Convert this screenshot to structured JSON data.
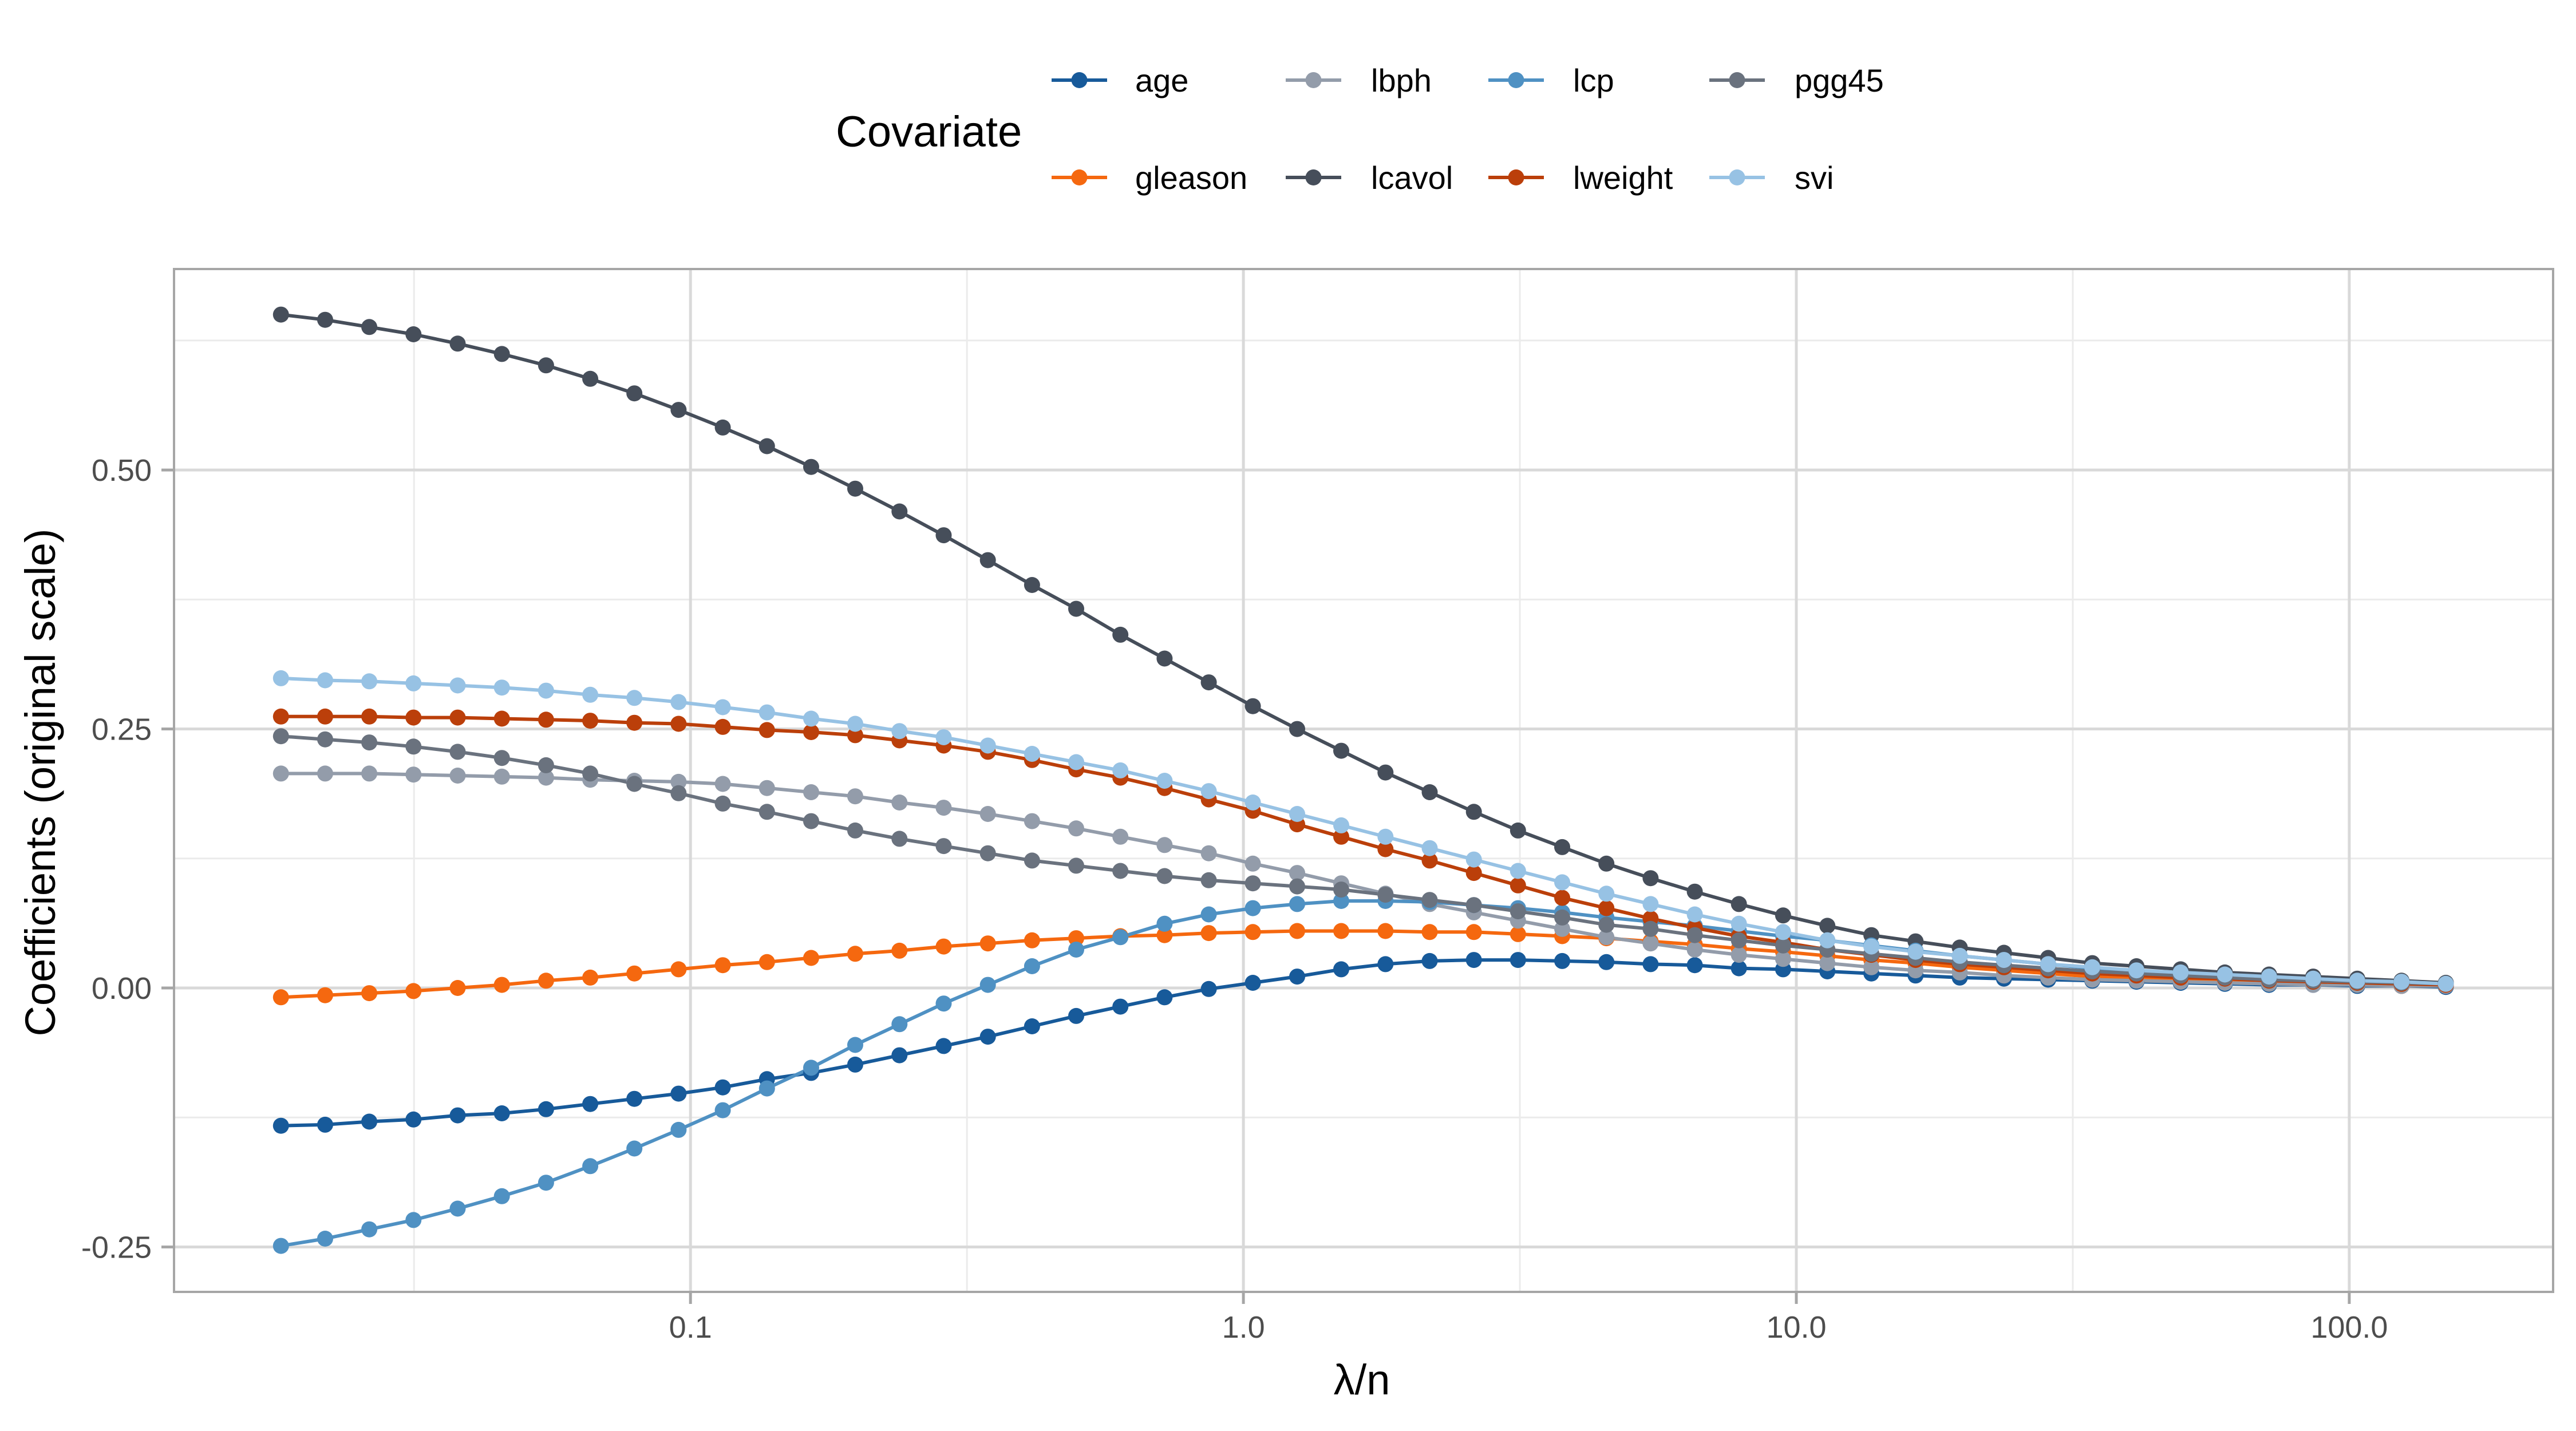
{
  "chart_data": {
    "type": "line",
    "title": "",
    "xlabel": "λ/n",
    "ylabel": "Coefficients (original scale)",
    "x_scale": "log10",
    "xlim": [
      0.01164,
      233.7
    ],
    "ylim": [
      -0.2934,
      0.694
    ],
    "grid": true,
    "legend": {
      "title": "Covariate",
      "position": "top",
      "rows": 2
    },
    "x_ticks": [
      {
        "value": 0.1,
        "label": "0.1"
      },
      {
        "value": 1.0,
        "label": "1.0"
      },
      {
        "value": 10.0,
        "label": "10.0"
      },
      {
        "value": 100.0,
        "label": "100.0"
      }
    ],
    "y_ticks": [
      {
        "value": 0.5,
        "label": "0.50"
      },
      {
        "value": 0.25,
        "label": "0.25"
      },
      {
        "value": 0.0,
        "label": "0.00"
      },
      {
        "value": -0.25,
        "label": "-0.25"
      }
    ],
    "x": [
      0.01817,
      0.02184,
      0.02625,
      0.03155,
      0.03793,
      0.04559,
      0.0548,
      0.06587,
      0.07917,
      0.09517,
      0.1144,
      0.1375,
      0.1653,
      0.1986,
      0.2388,
      0.287,
      0.345,
      0.4147,
      0.4984,
      0.5991,
      0.7201,
      0.8656,
      1.04,
      1.251,
      1.503,
      1.807,
      2.172,
      2.611,
      3.138,
      3.772,
      4.534,
      5.45,
      6.551,
      7.874,
      9.463,
      11.38,
      13.67,
      16.43,
      19.75,
      23.74,
      28.54,
      34.3,
      41.23,
      49.56,
      59.57,
      71.6,
      86.06,
      103.4,
      124.3,
      149.5
    ],
    "series": [
      {
        "name": "age",
        "color": "#175A9A",
        "values": [
          -0.133,
          -0.132,
          -0.129,
          -0.127,
          -0.123,
          -0.121,
          -0.117,
          -0.112,
          -0.107,
          -0.102,
          -0.096,
          -0.088,
          -0.082,
          -0.074,
          -0.065,
          -0.056,
          -0.047,
          -0.037,
          -0.027,
          -0.018,
          -0.009,
          -0.001,
          0.005,
          0.011,
          0.018,
          0.023,
          0.026,
          0.027,
          0.027,
          0.026,
          0.025,
          0.023,
          0.022,
          0.019,
          0.018,
          0.016,
          0.014,
          0.012,
          0.01,
          0.009,
          0.008,
          0.007,
          0.006,
          0.005,
          0.004,
          0.003,
          0.003,
          0.002,
          0.002,
          0.001
        ]
      },
      {
        "name": "gleason",
        "color": "#F5680F",
        "values": [
          -0.009,
          -0.007,
          -0.005,
          -0.003,
          0.0,
          0.003,
          0.007,
          0.01,
          0.014,
          0.018,
          0.022,
          0.025,
          0.029,
          0.033,
          0.036,
          0.04,
          0.043,
          0.046,
          0.048,
          0.05,
          0.051,
          0.053,
          0.054,
          0.055,
          0.055,
          0.055,
          0.054,
          0.054,
          0.052,
          0.05,
          0.048,
          0.045,
          0.042,
          0.038,
          0.035,
          0.031,
          0.027,
          0.024,
          0.02,
          0.017,
          0.014,
          0.011,
          0.009,
          0.007,
          0.006,
          0.005,
          0.004,
          0.003,
          0.002,
          0.002
        ]
      },
      {
        "name": "lbph",
        "color": "#939CAA",
        "values": [
          0.207,
          0.207,
          0.207,
          0.206,
          0.205,
          0.204,
          0.203,
          0.201,
          0.2,
          0.199,
          0.197,
          0.193,
          0.189,
          0.185,
          0.179,
          0.174,
          0.168,
          0.161,
          0.154,
          0.146,
          0.138,
          0.13,
          0.12,
          0.111,
          0.101,
          0.091,
          0.081,
          0.073,
          0.065,
          0.057,
          0.049,
          0.043,
          0.037,
          0.032,
          0.028,
          0.024,
          0.02,
          0.017,
          0.015,
          0.012,
          0.01,
          0.008,
          0.007,
          0.006,
          0.005,
          0.004,
          0.003,
          0.003,
          0.002,
          0.002
        ]
      },
      {
        "name": "lcavol",
        "color": "#464E5A",
        "values": [
          0.65,
          0.645,
          0.638,
          0.631,
          0.622,
          0.612,
          0.601,
          0.588,
          0.574,
          0.558,
          0.541,
          0.523,
          0.503,
          0.482,
          0.46,
          0.437,
          0.413,
          0.389,
          0.366,
          0.341,
          0.318,
          0.295,
          0.272,
          0.25,
          0.229,
          0.208,
          0.189,
          0.17,
          0.152,
          0.136,
          0.12,
          0.106,
          0.093,
          0.081,
          0.07,
          0.06,
          0.051,
          0.045,
          0.039,
          0.034,
          0.029,
          0.024,
          0.021,
          0.018,
          0.015,
          0.013,
          0.011,
          0.009,
          0.007,
          0.005
        ]
      },
      {
        "name": "lcp",
        "color": "#4F91C3",
        "values": [
          -0.249,
          -0.242,
          -0.233,
          -0.224,
          -0.213,
          -0.201,
          -0.188,
          -0.172,
          -0.155,
          -0.137,
          -0.118,
          -0.097,
          -0.077,
          -0.055,
          -0.035,
          -0.015,
          0.003,
          0.021,
          0.037,
          0.049,
          0.062,
          0.071,
          0.077,
          0.081,
          0.084,
          0.084,
          0.083,
          0.08,
          0.077,
          0.073,
          0.068,
          0.064,
          0.06,
          0.055,
          0.05,
          0.046,
          0.041,
          0.036,
          0.031,
          0.027,
          0.023,
          0.019,
          0.016,
          0.013,
          0.011,
          0.009,
          0.007,
          0.006,
          0.005,
          0.004
        ]
      },
      {
        "name": "lweight",
        "color": "#BB3F0A",
        "values": [
          0.262,
          0.262,
          0.262,
          0.261,
          0.261,
          0.26,
          0.259,
          0.258,
          0.256,
          0.255,
          0.252,
          0.249,
          0.247,
          0.244,
          0.239,
          0.234,
          0.228,
          0.22,
          0.211,
          0.203,
          0.193,
          0.182,
          0.171,
          0.158,
          0.146,
          0.134,
          0.123,
          0.111,
          0.099,
          0.087,
          0.077,
          0.067,
          0.058,
          0.05,
          0.044,
          0.037,
          0.032,
          0.027,
          0.023,
          0.02,
          0.017,
          0.014,
          0.012,
          0.01,
          0.009,
          0.007,
          0.006,
          0.005,
          0.004,
          0.003
        ]
      },
      {
        "name": "pgg45",
        "color": "#6A727E",
        "values": [
          0.243,
          0.24,
          0.237,
          0.233,
          0.228,
          0.222,
          0.215,
          0.207,
          0.197,
          0.188,
          0.178,
          0.17,
          0.161,
          0.152,
          0.144,
          0.137,
          0.13,
          0.123,
          0.118,
          0.113,
          0.108,
          0.104,
          0.101,
          0.098,
          0.095,
          0.09,
          0.085,
          0.08,
          0.074,
          0.068,
          0.061,
          0.057,
          0.051,
          0.046,
          0.041,
          0.037,
          0.033,
          0.029,
          0.025,
          0.022,
          0.019,
          0.016,
          0.014,
          0.012,
          0.01,
          0.008,
          0.007,
          0.006,
          0.005,
          0.004
        ]
      },
      {
        "name": "svi",
        "color": "#97C2E4",
        "values": [
          0.299,
          0.297,
          0.296,
          0.294,
          0.292,
          0.29,
          0.287,
          0.283,
          0.28,
          0.276,
          0.271,
          0.266,
          0.26,
          0.255,
          0.248,
          0.242,
          0.234,
          0.226,
          0.218,
          0.21,
          0.2,
          0.19,
          0.179,
          0.168,
          0.157,
          0.146,
          0.135,
          0.124,
          0.113,
          0.102,
          0.091,
          0.081,
          0.071,
          0.062,
          0.054,
          0.046,
          0.04,
          0.035,
          0.031,
          0.027,
          0.023,
          0.02,
          0.017,
          0.015,
          0.013,
          0.011,
          0.009,
          0.007,
          0.006,
          0.004
        ]
      }
    ]
  }
}
